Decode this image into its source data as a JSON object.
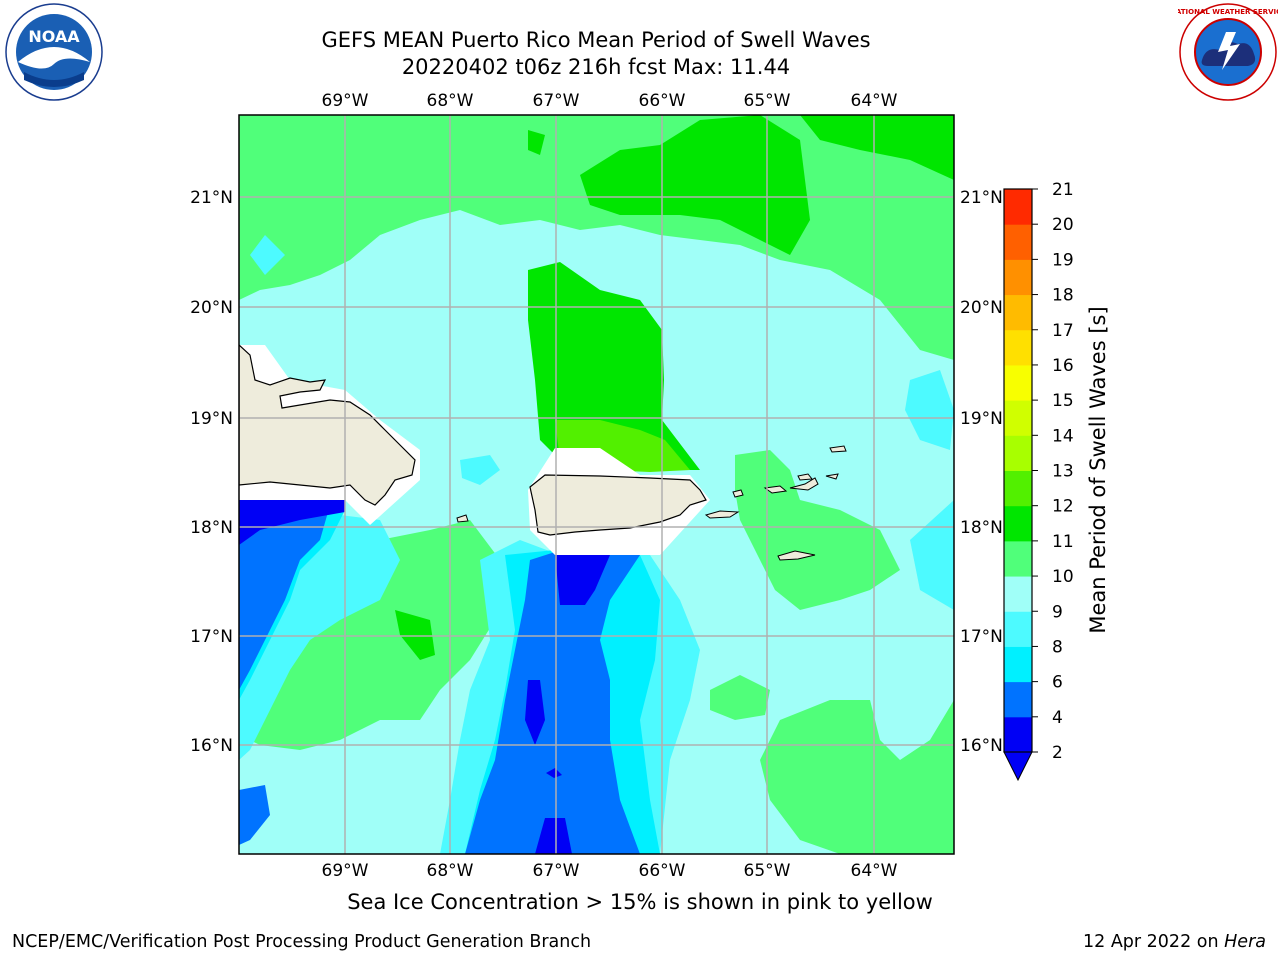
{
  "header": {
    "title_line1": "GEFS MEAN Puerto Rico Mean Period of Swell Waves",
    "title_line2": "20220402 t06z 216h fcst   Max: 11.44"
  },
  "logos": {
    "noaa_text": "NOAA",
    "noaa_ring_text": "NATIONAL OCEANIC AND ATMOSPHERIC ADMINISTRATION · U.S. DEPARTMENT OF COMMERCE",
    "nws_ring_text": "NATIONAL WEATHER SERVICE"
  },
  "map": {
    "lon_ticks": [
      "69°W",
      "68°W",
      "67°W",
      "66°W",
      "65°W",
      "64°W"
    ],
    "lat_ticks": [
      "21°N",
      "20°N",
      "19°N",
      "18°N",
      "17°N",
      "16°N"
    ],
    "lon_range": [
      -70,
      -63.3
    ],
    "lat_range": [
      15,
      21.75
    ],
    "land_color": "#eeecdc",
    "grid_color": "#b0b0b0"
  },
  "colorbar": {
    "label": "Mean Period of Swell Waves [s]",
    "levels": [
      2,
      4,
      6,
      8,
      9,
      10,
      11,
      12,
      13,
      14,
      15,
      16,
      17,
      18,
      19,
      20,
      21
    ],
    "colors": [
      "#0000f5",
      "#0073ff",
      "#00f0ff",
      "#4dfaff",
      "#a0fff8",
      "#50ff7a",
      "#00e600",
      "#52f000",
      "#a8ff00",
      "#d0ff00",
      "#f8ff00",
      "#ffe000",
      "#ffbb00",
      "#ff9000",
      "#ff6000",
      "#ff2a00"
    ],
    "extend_min_color": "#0000f5"
  },
  "footer": {
    "sea_ice_note": "Sea Ice Concentration > 15% is shown in pink to yellow",
    "branch": "NCEP/EMC/Verification Post Processing Product Generation Branch",
    "date_prefix": "12 Apr 2022 on ",
    "machine": "Hera"
  }
}
